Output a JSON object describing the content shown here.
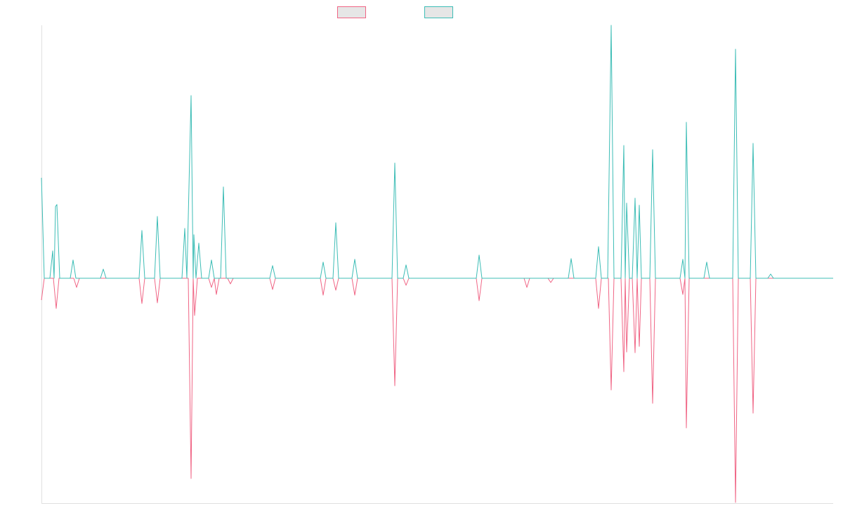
{
  "chart_data": {
    "type": "line",
    "xlim": [
      0,
      1127
    ],
    "ylim": [
      -320,
      360
    ],
    "series": [
      {
        "color": "#f06585",
        "x": [
          0,
          4,
          17,
          21,
          25,
          46,
          50,
          54,
          139,
          143,
          147,
          161,
          165,
          169,
          209,
          213,
          216,
          218,
          222,
          238,
          242,
          246,
          249,
          253,
          265,
          269,
          273,
          325,
          329,
          333,
          397,
          401,
          405,
          415,
          419,
          423,
          442,
          446,
          450,
          499,
          503,
          507,
          515,
          519,
          523,
          619,
          623,
          627,
          687,
          691,
          695,
          721,
          725,
          729,
          789,
          793,
          797,
          807,
          811,
          815,
          825,
          829,
          831,
          833,
          837,
          841,
          845,
          848,
          851,
          854,
          866,
          870,
          874,
          909,
          913,
          916,
          918,
          922,
          984,
          988,
          992,
          1009,
          1013,
          1017,
          1127
        ],
        "values": [
          -31,
          0,
          0,
          -43,
          0,
          0,
          -13,
          0,
          0,
          -36,
          0,
          0,
          -35,
          0,
          0,
          -285,
          0,
          -53,
          0,
          0,
          -13,
          0,
          -23,
          0,
          0,
          -8,
          0,
          0,
          -16,
          0,
          0,
          -24,
          0,
          0,
          -17,
          0,
          0,
          -24,
          0,
          0,
          -153,
          0,
          0,
          -10,
          0,
          0,
          -32,
          0,
          0,
          -13,
          0,
          0,
          -6,
          0,
          0,
          -43,
          0,
          0,
          -159,
          0,
          0,
          -133,
          0,
          -105,
          0,
          0,
          -106,
          0,
          -97,
          0,
          0,
          -178,
          0,
          0,
          -23,
          0,
          -213,
          0,
          0,
          -319,
          0,
          0,
          -192,
          0,
          0
        ]
      },
      {
        "color": "#3dbdb6",
        "x": [
          0,
          4,
          12,
          16,
          18,
          20,
          22,
          26,
          41,
          45,
          49,
          84,
          88,
          92,
          139,
          143,
          147,
          161,
          165,
          169,
          200,
          204,
          207,
          213,
          216,
          217,
          220,
          224,
          228,
          238,
          242,
          246,
          255,
          259,
          263,
          325,
          329,
          333,
          397,
          401,
          405,
          415,
          419,
          423,
          442,
          446,
          450,
          499,
          503,
          507,
          515,
          519,
          523,
          619,
          623,
          627,
          750,
          754,
          758,
          789,
          793,
          797,
          806,
          811,
          815,
          825,
          829,
          831,
          833,
          837,
          841,
          845,
          848,
          851,
          854,
          866,
          870,
          874,
          909,
          913,
          916,
          918,
          922,
          943,
          947,
          951,
          984,
          988,
          992,
          1009,
          1013,
          1017,
          1034,
          1038,
          1042,
          1127
        ],
        "values": [
          143,
          0,
          0,
          39,
          0,
          102,
          105,
          0,
          0,
          26,
          0,
          0,
          13,
          0,
          0,
          68,
          0,
          0,
          88,
          0,
          0,
          71,
          0,
          260,
          0,
          62,
          0,
          50,
          0,
          0,
          26,
          0,
          0,
          130,
          0,
          0,
          18,
          0,
          0,
          23,
          0,
          0,
          79,
          0,
          0,
          27,
          0,
          0,
          164,
          0,
          0,
          19,
          0,
          0,
          33,
          0,
          0,
          28,
          0,
          0,
          45,
          0,
          0,
          360,
          0,
          0,
          189,
          0,
          107,
          0,
          0,
          114,
          0,
          104,
          0,
          0,
          183,
          0,
          0,
          27,
          0,
          222,
          0,
          0,
          23,
          0,
          0,
          326,
          0,
          0,
          192,
          0,
          0,
          6,
          0,
          0
        ]
      }
    ]
  }
}
